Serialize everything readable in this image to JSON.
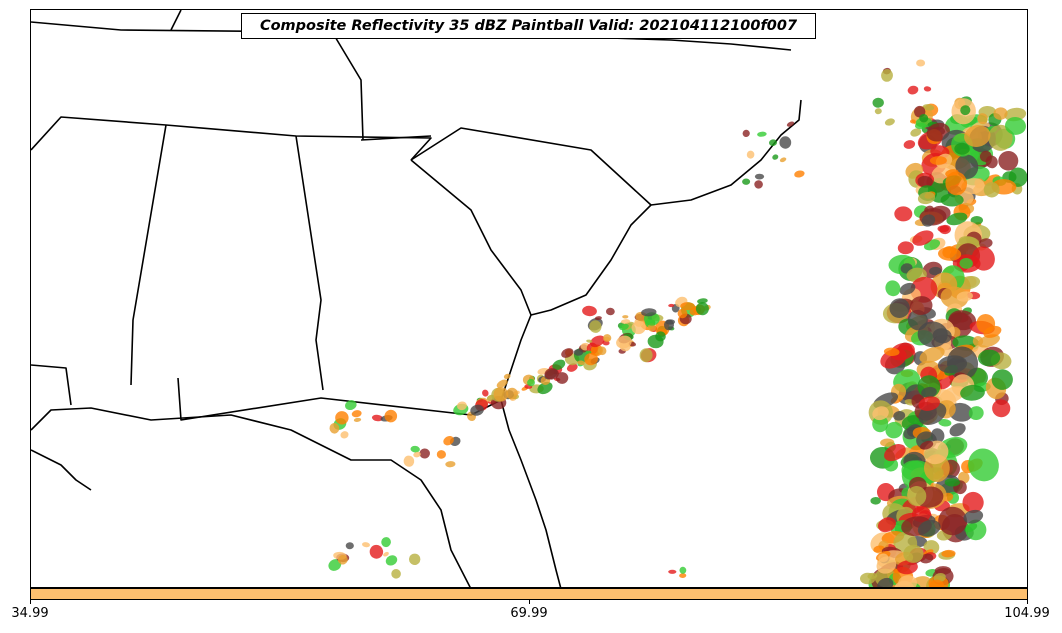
{
  "title": "Composite Reflectivity 35 dBZ Paintball Valid: 202104112100f007",
  "colorbar": {
    "color": "#fdbf6f",
    "ticks": [
      "34.99",
      "69.99",
      "104.99"
    ]
  },
  "member_colors": [
    "#e31a1c",
    "#ff7f00",
    "#fdbf6f",
    "#33cc33",
    "#1a9a1a",
    "#4a4a4a",
    "#8b2323",
    "#b8b040",
    "#e8a030"
  ],
  "map": {
    "region": "Southeastern United States",
    "boundaries": "state and coastline outlines in black"
  }
}
